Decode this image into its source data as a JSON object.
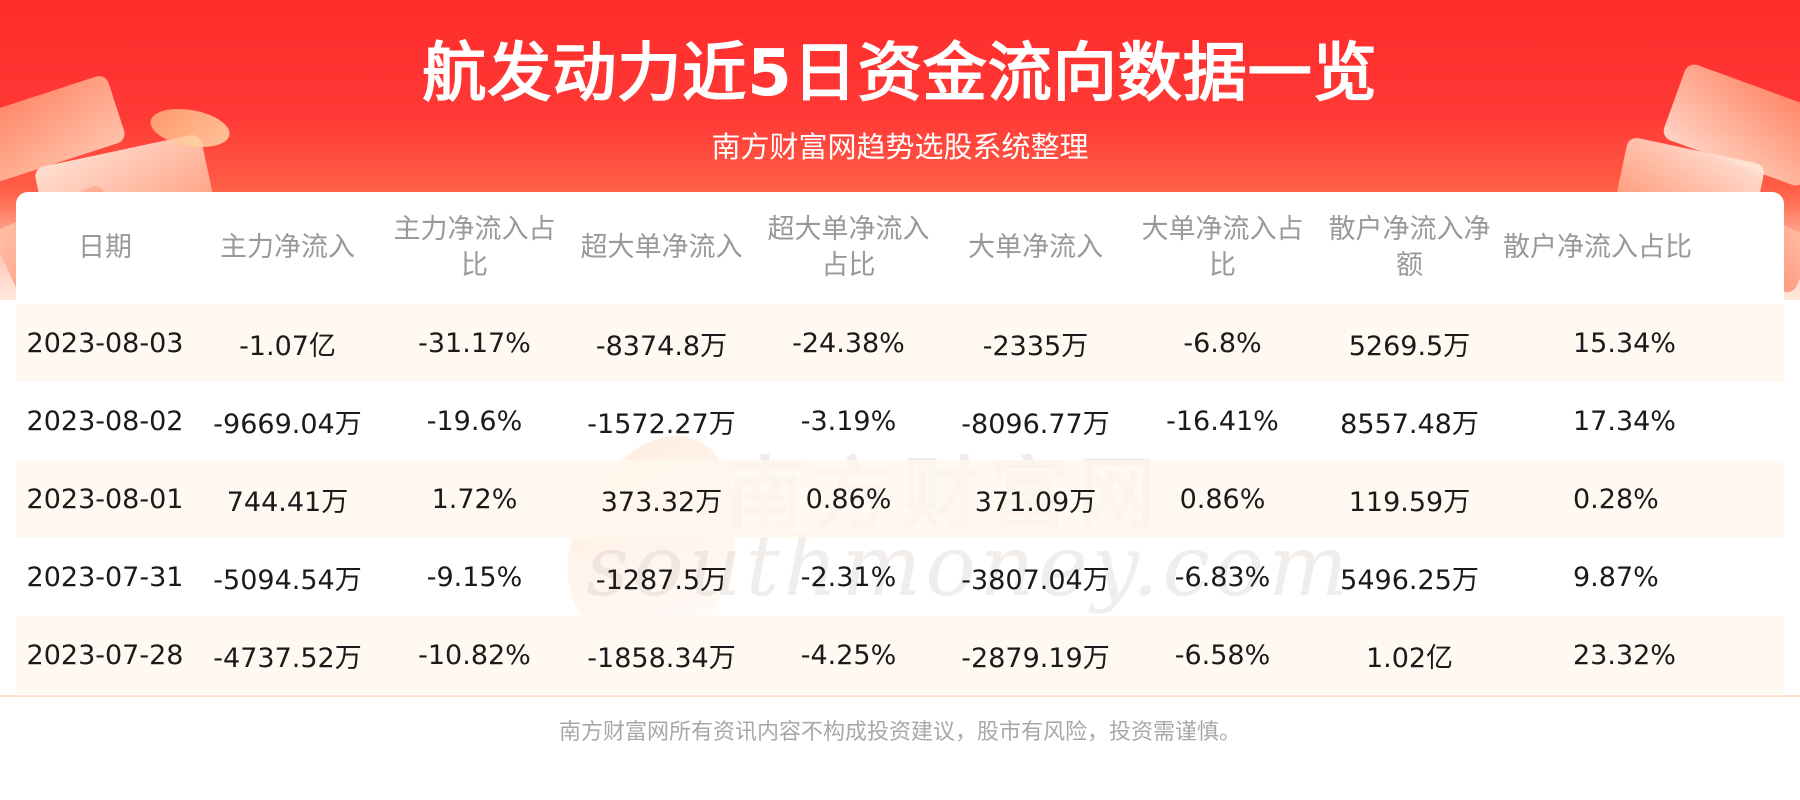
{
  "header": {
    "title": "航发动力近5日资金流向数据一览",
    "subtitle": "南方财富网趋势选股系统整理"
  },
  "watermark": {
    "cn": "南方财富网",
    "en": "southmoney.com"
  },
  "table": {
    "columns": [
      "日期",
      "主力净流入",
      "主力净流入占比",
      "超大单净流入",
      "超大单净流入占比",
      "大单净流入",
      "大单净流入占比",
      "散户净流入净额",
      "散户净流入占比"
    ],
    "rows": [
      [
        "2023-08-03",
        "-1.07亿",
        "-31.17%",
        "-8374.8万",
        "-24.38%",
        "-2335万",
        "-6.8%",
        "5269.5万",
        "15.34%"
      ],
      [
        "2023-08-02",
        "-9669.04万",
        "-19.6%",
        "-1572.27万",
        "-3.19%",
        "-8096.77万",
        "-16.41%",
        "8557.48万",
        "17.34%"
      ],
      [
        "2023-08-01",
        "744.41万",
        "1.72%",
        "373.32万",
        "0.86%",
        "371.09万",
        "0.86%",
        "119.59万",
        "0.28%"
      ],
      [
        "2023-07-31",
        "-5094.54万",
        "-9.15%",
        "-1287.5万",
        "-2.31%",
        "-3807.04万",
        "-6.83%",
        "5496.25万",
        "9.87%"
      ],
      [
        "2023-07-28",
        "-4737.52万",
        "-10.82%",
        "-1858.34万",
        "-4.25%",
        "-2879.19万",
        "-6.58%",
        "1.02亿",
        "23.32%"
      ]
    ]
  },
  "footer": {
    "disclaimer": "南方财富网所有资讯内容不构成投资建议，股市有风险，投资需谨慎。"
  },
  "colors": {
    "banner_red": "#ff2b2b",
    "odd_row": "#fff7ee",
    "header_text": "#999999",
    "cell_text": "#1a1a1a"
  }
}
